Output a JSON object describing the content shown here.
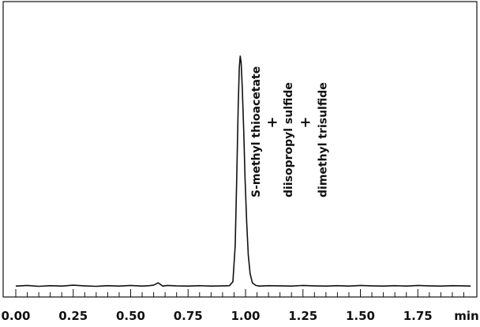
{
  "chart_data": {
    "type": "line",
    "xlabel": "",
    "ylabel": "",
    "xunit": "min",
    "xlim": [
      0.0,
      1.98
    ],
    "ylim": [
      0,
      100
    ],
    "x_ticks": [
      0.0,
      0.25,
      0.5,
      0.75,
      1.0,
      1.25,
      1.5,
      1.75
    ],
    "x_tick_labels": [
      "0.00",
      "0.25",
      "0.50",
      "0.75",
      "1.00",
      "1.25",
      "1.50",
      "1.75"
    ],
    "minor_tick_step": 0.05,
    "grid": false,
    "series": [
      {
        "x": [
          0.0,
          0.05,
          0.1,
          0.15,
          0.2,
          0.25,
          0.3,
          0.35,
          0.4,
          0.45,
          0.5,
          0.55,
          0.58,
          0.6,
          0.62,
          0.64,
          0.66,
          0.7,
          0.75,
          0.8,
          0.85,
          0.9,
          0.93,
          0.945,
          0.955,
          0.962,
          0.968,
          0.973,
          0.977,
          0.981,
          0.986,
          0.992,
          0.998,
          1.005,
          1.012,
          1.02,
          1.03,
          1.045,
          1.06,
          1.1,
          1.15,
          1.2,
          1.25,
          1.3,
          1.35,
          1.4,
          1.45,
          1.5,
          1.55,
          1.6,
          1.65,
          1.7,
          1.75,
          1.8,
          1.85,
          1.9,
          1.95,
          1.98
        ],
        "y": [
          0.6,
          0.9,
          0.5,
          0.8,
          0.6,
          1.0,
          0.7,
          0.5,
          0.8,
          0.6,
          0.9,
          0.6,
          0.8,
          1.0,
          2.0,
          0.6,
          0.9,
          0.7,
          0.6,
          0.8,
          0.6,
          0.7,
          0.8,
          2.5,
          18,
          48,
          78,
          95,
          100,
          97,
          86,
          68,
          47,
          28,
          14,
          6,
          2,
          0.9,
          0.6,
          0.8,
          0.7,
          0.6,
          0.9,
          0.7,
          0.6,
          0.8,
          0.6,
          0.9,
          0.7,
          0.6,
          0.8,
          0.6,
          0.9,
          0.7,
          0.6,
          0.8,
          0.7,
          0.6
        ]
      }
    ],
    "annotations": [
      {
        "text": "S-methyl thioacetate",
        "x": 1.045
      },
      {
        "text": "+",
        "x": 1.115
      },
      {
        "text": "diisopropyl sulfide",
        "x": 1.185
      },
      {
        "text": "+",
        "x": 1.26
      },
      {
        "text": "dimethyl trisulfide",
        "x": 1.335
      }
    ]
  }
}
